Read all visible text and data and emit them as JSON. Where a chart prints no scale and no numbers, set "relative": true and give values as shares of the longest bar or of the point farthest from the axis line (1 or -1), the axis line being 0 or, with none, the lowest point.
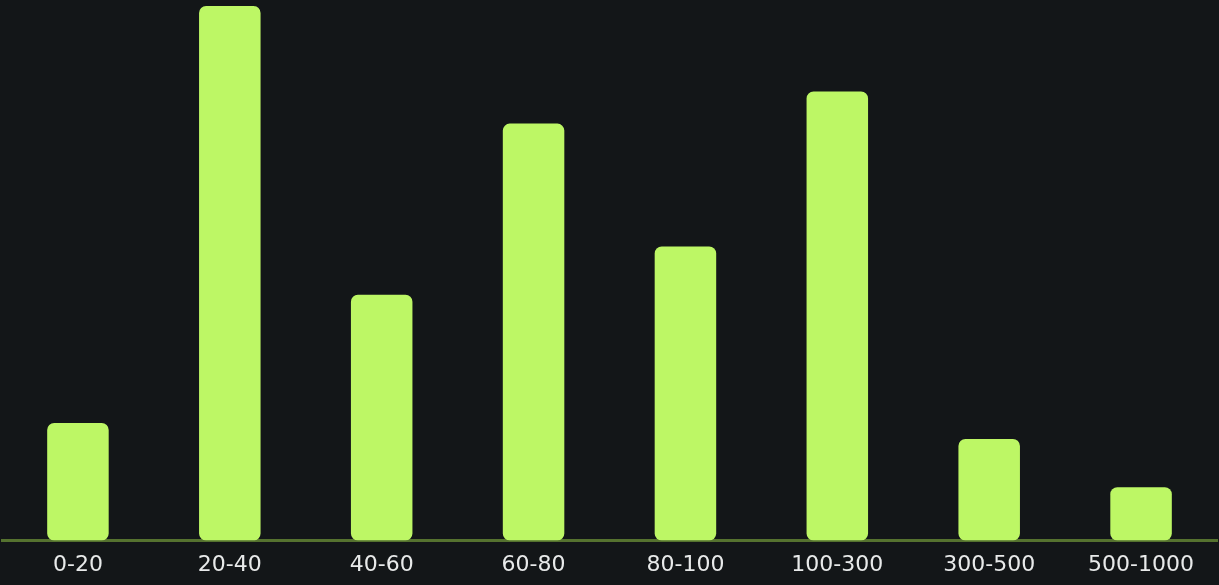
{
  "chart_data": {
    "type": "bar",
    "relative": true,
    "categories": [
      "0-20",
      "20-40",
      "40-60",
      "60-80",
      "80-100",
      "100-300",
      "300-500",
      "500-1000"
    ],
    "values": [
      0.22,
      1,
      0.46,
      0.78,
      0.55,
      0.84,
      0.19,
      0.1
    ],
    "color": "#bdf765"
  }
}
